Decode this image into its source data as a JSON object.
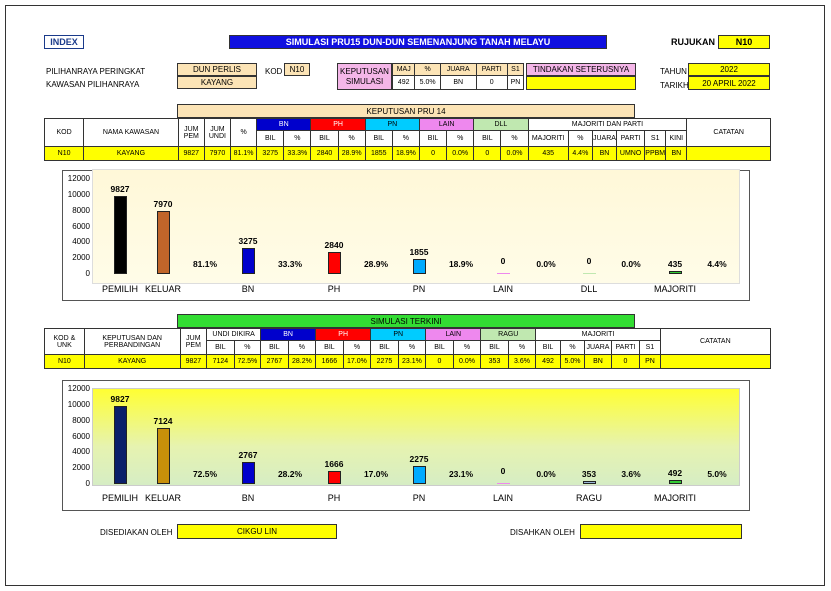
{
  "header": {
    "index_label": "INDEX",
    "title": "SIMULASI PRU15 DUN-DUN SEMENANJUNG TANAH MELAYU",
    "rujukan_label": "RUJUKAN",
    "rujukan_value": "N10"
  },
  "info": {
    "pilihanraya_label": "PILIHANRAYA PERINGKAT",
    "pilihanraya_value": "DUN PERLIS",
    "kawasan_label": "KAWASAN PILIHANRAYA",
    "kawasan_value": "KAYANG",
    "kod_label": "KOD",
    "kod_value": "N10",
    "keputusan_label1": "KEPUTUSAN",
    "keputusan_label2": "SIMULASI",
    "mai_h": "MAJ",
    "pct_h": "%",
    "juara_h": "JUARA",
    "parti_h": "PARTI",
    "s1_h": "S1",
    "mai_v": "492",
    "pct_v": "5.0%",
    "juara_v": "BN",
    "parti_v": "0",
    "s1_v": "PN",
    "tindakan_label": "TINDAKAN SETERUSNYA",
    "tindakan_value": "",
    "tahun_label": "TAHUN",
    "tahun_value": "2022",
    "tarikh_label": "TARIKH",
    "tarikh_value": "20 APRIL 2022"
  },
  "colors": {
    "bn": "#0000cc",
    "ph": "#ff0000",
    "pn": "#00ccff",
    "lain": "#ee88ee",
    "dll": "#c0e8b0",
    "green_header": "#33dd33",
    "orange_header": "#fcd89a"
  },
  "table1": {
    "section_title": "KEPUTUSAN PRU 14",
    "h_kod": "KOD",
    "h_nama": "NAMA KAWASAN",
    "h_jum_pem1": "JUM",
    "h_jum_pem2": "PEM",
    "h_jum_undi1": "JUM",
    "h_jum_undi2": "UNDI",
    "h_pct": "%",
    "h_bn": "BN",
    "h_ph": "PH",
    "h_pn": "PN",
    "h_lain": "LAIN",
    "h_dll": "DLL",
    "h_majoriti": "MAJORITI DAN PARTI",
    "h_catatan": "CATATAN",
    "h_bil": "BIL",
    "h_pctsub": "%",
    "h_maj": "MAJORITI",
    "h_juara": "JUARA",
    "h_parti": "PARTI",
    "h_s1": "S1",
    "h_kini": "KINI",
    "row": [
      "N10",
      "KAYANG",
      "9827",
      "7970",
      "81.1%",
      "3275",
      "33.3%",
      "2840",
      "28.9%",
      "1855",
      "18.9%",
      "0",
      "0.0%",
      "0",
      "0.0%",
      "435",
      "4.4%",
      "BN",
      "UMNO",
      "PPBM",
      "BN",
      ""
    ]
  },
  "chart1": {
    "chart_data": {
      "type": "bar",
      "ylim": [
        0,
        12000
      ],
      "yticks": [
        "12000",
        "10000",
        "8000",
        "6000",
        "4000",
        "2000",
        "0"
      ],
      "categories": [
        "PEMILIH",
        "KELUAR",
        "BN",
        "PH",
        "PN",
        "LAIN",
        "DLL",
        "MAJORITI"
      ],
      "bars": [
        {
          "name": "PEMILIH",
          "value": 9827,
          "label": "9827",
          "color": "#000000"
        },
        {
          "name": "KELUAR",
          "value": 7970,
          "label": "7970",
          "color": "#c0652a"
        },
        {
          "name": "BN",
          "value": 3275,
          "label": "3275",
          "color": "#0000cc"
        },
        {
          "name": "PH",
          "value": 2840,
          "label": "2840",
          "color": "#ff0000"
        },
        {
          "name": "PN",
          "value": 1855,
          "label": "1855",
          "color": "#00aaff"
        },
        {
          "name": "LAIN",
          "value": 0,
          "label": "0",
          "color": "#ee88ee"
        },
        {
          "name": "DLL",
          "value": 0,
          "label": "0",
          "color": "#c0e8b0"
        },
        {
          "name": "MAJORITI",
          "value": 435,
          "label": "435",
          "color": "#33cc33"
        }
      ],
      "percentages": [
        "81.1%",
        "33.3%",
        "28.9%",
        "18.9%",
        "0.0%",
        "0.0%",
        "4.4%"
      ]
    }
  },
  "table2": {
    "section_title": "SIMULASI TERKINI",
    "h_kod1": "KOD &",
    "h_kod2": "UNK",
    "h_kep1": "KEPUTUSAN DAN",
    "h_kep2": "PERBANDINGAN",
    "h_jum1": "JUM",
    "h_jum2": "PEM",
    "h_undi": "UNDI DIKIRA",
    "h_bn": "BN",
    "h_ph": "PH",
    "h_pn": "PN",
    "h_lain": "LAIN",
    "h_ragu": "RAGU",
    "h_majoriti": "MAJORITI",
    "h_catatan": "CATATAN",
    "h_bil": "BIL",
    "h_pctsub": "%",
    "h_juara": "JUARA",
    "h_parti": "PARTI",
    "h_s1": "S1",
    "row": [
      "N10",
      "KAYANG",
      "9827",
      "7124",
      "72.5%",
      "2767",
      "28.2%",
      "1666",
      "17.0%",
      "2275",
      "23.1%",
      "0",
      "0.0%",
      "353",
      "3.6%",
      "492",
      "5.0%",
      "BN",
      "0",
      "PN",
      ""
    ]
  },
  "chart2": {
    "chart_data": {
      "type": "bar",
      "ylim": [
        0,
        12000
      ],
      "yticks": [
        "12000",
        "10000",
        "8000",
        "6000",
        "4000",
        "2000",
        "0"
      ],
      "categories": [
        "PEMILIH",
        "KELUAR",
        "BN",
        "PH",
        "PN",
        "LAIN",
        "RAGU",
        "MAJORITI"
      ],
      "bars": [
        {
          "name": "PEMILIH",
          "value": 9827,
          "label": "9827",
          "color": "#0a1f6a"
        },
        {
          "name": "KELUAR",
          "value": 7124,
          "label": "7124",
          "color": "#c8900a"
        },
        {
          "name": "BN",
          "value": 2767,
          "label": "2767",
          "color": "#0000cc"
        },
        {
          "name": "PH",
          "value": 1666,
          "label": "1666",
          "color": "#ff0000"
        },
        {
          "name": "PN",
          "value": 2275,
          "label": "2275",
          "color": "#00aaff"
        },
        {
          "name": "LAIN",
          "value": 0,
          "label": "0",
          "color": "#ee88ee"
        },
        {
          "name": "RAGU",
          "value": 353,
          "label": "353",
          "color": "#9ab8d8"
        },
        {
          "name": "MAJORITI",
          "value": 492,
          "label": "492",
          "color": "#33cc33"
        }
      ],
      "percentages": [
        "72.5%",
        "28.2%",
        "17.0%",
        "23.1%",
        "0.0%",
        "3.6%",
        "5.0%"
      ]
    }
  },
  "footer": {
    "disediakan_label": "DISEDIAKAN OLEH",
    "disediakan_value": "CIKGU LIN",
    "disahkan_label": "DISAHKAN OLEH",
    "disahkan_value": ""
  }
}
